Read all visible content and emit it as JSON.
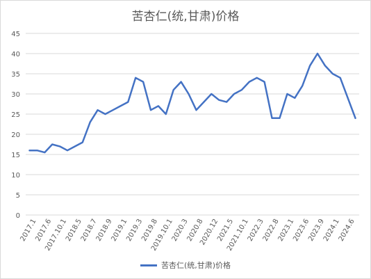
{
  "chart_data": {
    "type": "line",
    "title": "苦杏仁(统,甘肃)价格",
    "xlabel": "",
    "ylabel": "",
    "ylim": [
      0,
      45
    ],
    "y_ticks": [
      0,
      5,
      10,
      15,
      20,
      25,
      30,
      35,
      40,
      45
    ],
    "grid": true,
    "legend_position": "bottom",
    "x_tick_labels": [
      "2017.1",
      "2017.6",
      "2017.10.1",
      "2018.5",
      "2018.7",
      "2018.9",
      "2019.1",
      "2019.3",
      "2019.8",
      "2019.10.1",
      "2020.3",
      "2020.8",
      "2020.12",
      "2021.5",
      "2021.10.1",
      "2022.3",
      "2022.8",
      "2023.1",
      "2023.6",
      "2023.9",
      "2024.1",
      "2024.6"
    ],
    "series": [
      {
        "name": "苦杏仁(统,甘肃)价格",
        "color": "#4472c4",
        "values": [
          16,
          16,
          15.5,
          17.5,
          17,
          16,
          17,
          18,
          23,
          26,
          25,
          26,
          27,
          28,
          34,
          33,
          26,
          27,
          25,
          31,
          33,
          30,
          26,
          28,
          30,
          28.5,
          28,
          30,
          31,
          33,
          34,
          33,
          24,
          24,
          30,
          29,
          32,
          37,
          40,
          37,
          35,
          34,
          29,
          24
        ]
      }
    ]
  }
}
